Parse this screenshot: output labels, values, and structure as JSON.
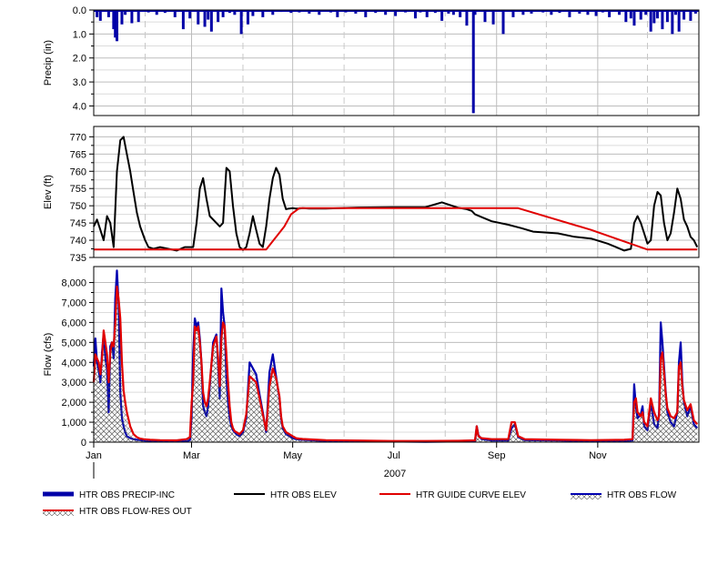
{
  "chart_data": [
    {
      "type": "bar",
      "ylabel": "Precip (in)",
      "ylim": [
        0,
        4.4
      ],
      "y_inverted": true,
      "yticks": [
        "0.0",
        "1.0",
        "2.0",
        "3.0",
        "4.0"
      ],
      "ytick_values": [
        0,
        1,
        2,
        3,
        4
      ],
      "grid": true,
      "series": [
        {
          "name": "HTR OBS PRECIP-INC",
          "color": "#0000a8",
          "x_day": [
            2,
            4,
            9,
            12,
            13,
            14,
            17,
            19,
            23,
            27,
            33,
            38,
            43,
            49,
            54,
            58,
            63,
            67,
            69,
            71,
            75,
            78,
            82,
            85,
            89,
            93,
            96,
            102,
            108,
            113,
            119,
            124,
            130,
            136,
            143,
            147,
            152,
            158,
            164,
            170,
            176,
            182,
            188,
            194,
            197,
            201,
            206,
            210,
            214,
            217,
            221,
            225,
            229,
            230,
            236,
            241,
            247,
            253,
            259,
            264,
            271,
            276,
            281,
            287,
            293,
            298,
            303,
            307,
            311,
            317,
            321,
            324,
            326,
            330,
            333,
            336,
            338,
            340,
            343,
            346,
            349,
            351,
            353,
            356,
            360,
            363
          ],
          "values": [
            0.3,
            0.45,
            0.3,
            0.8,
            1.15,
            1.3,
            0.6,
            0.2,
            0.55,
            0.5,
            0.1,
            0.2,
            0.12,
            0.3,
            0.8,
            0.35,
            0.6,
            0.7,
            0.4,
            0.9,
            0.5,
            0.3,
            0.12,
            0.2,
            1.0,
            0.6,
            0.25,
            0.3,
            0.2,
            0.08,
            0.12,
            0.1,
            0.15,
            0.2,
            0.1,
            0.3,
            0.1,
            0.15,
            0.3,
            0.12,
            0.2,
            0.25,
            0.1,
            0.35,
            0.1,
            0.3,
            0.12,
            0.45,
            0.15,
            0.2,
            0.3,
            0.65,
            4.3,
            0.2,
            0.5,
            0.6,
            1.0,
            0.3,
            0.2,
            0.15,
            0.1,
            0.2,
            0.12,
            0.3,
            0.15,
            0.2,
            0.25,
            0.1,
            0.3,
            0.2,
            0.5,
            0.35,
            0.65,
            0.4,
            0.2,
            0.9,
            0.55,
            0.35,
            0.8,
            0.5,
            1.0,
            0.2,
            0.9,
            0.4,
            0.45,
            0.15
          ]
        }
      ]
    },
    {
      "type": "line",
      "ylabel": "Elev (ft)",
      "ylim": [
        735,
        773
      ],
      "yticks": [
        "735",
        "740",
        "745",
        "750",
        "755",
        "760",
        "765",
        "770"
      ],
      "ytick_values": [
        735,
        740,
        745,
        750,
        755,
        760,
        765,
        770
      ],
      "grid": true,
      "series": [
        {
          "name": "HTR OBS ELEV",
          "color": "#000000",
          "x_day": [
            0,
            2,
            4,
            6,
            8,
            10,
            12,
            14,
            16,
            18,
            20,
            22,
            24,
            26,
            28,
            31,
            33,
            36,
            40,
            45,
            50,
            55,
            60,
            62,
            64,
            66,
            68,
            70,
            72,
            74,
            76,
            78,
            80,
            82,
            84,
            86,
            88,
            90,
            92,
            94,
            96,
            98,
            100,
            102,
            104,
            106,
            108,
            110,
            112,
            114,
            116,
            118,
            120,
            122,
            124,
            126,
            130,
            140,
            160,
            180,
            200,
            210,
            220,
            225,
            228,
            230,
            235,
            240,
            250,
            258,
            265,
            280,
            290,
            300,
            310,
            315,
            320,
            324,
            326,
            328,
            330,
            332,
            334,
            336,
            338,
            340,
            342,
            344,
            346,
            348,
            350,
            352,
            354,
            356,
            358,
            360,
            362,
            364
          ],
          "values": [
            744,
            746,
            743,
            740,
            747,
            745,
            738,
            760,
            769,
            770,
            765,
            760,
            754,
            748,
            744,
            740,
            738,
            737.5,
            738,
            737.5,
            737,
            738,
            738,
            745,
            755,
            758,
            752,
            747,
            746,
            745,
            744,
            745,
            761,
            760,
            750,
            742,
            738,
            737.2,
            738,
            742,
            747,
            743,
            739,
            738,
            744,
            752,
            758,
            761,
            759,
            752,
            749,
            749.2,
            749.3,
            749.2,
            749.2,
            749.3,
            749.2,
            749.2,
            749.5,
            749.6,
            749.6,
            751,
            749.4,
            749,
            748.5,
            747.5,
            746.5,
            745.5,
            744.5,
            743.5,
            742.5,
            742,
            741,
            740.5,
            739,
            738,
            737,
            737.5,
            745,
            747,
            745,
            742,
            739,
            740,
            750,
            754,
            753,
            745,
            740,
            742,
            748,
            755,
            752,
            746,
            744,
            741,
            740,
            738
          ]
        },
        {
          "name": "HTR GUIDE CURVE ELEV",
          "color": "#e00000",
          "x_day": [
            0,
            104,
            115,
            119,
            124,
            130,
            170,
            200,
            230,
            256,
            300,
            334,
            364
          ],
          "values": [
            737.3,
            737.3,
            744,
            747.5,
            749.3,
            749.3,
            749.3,
            749.3,
            749.3,
            749.3,
            743,
            737.3,
            737.3
          ]
        }
      ]
    },
    {
      "type": "line",
      "ylabel": "Flow (cfs)",
      "ylim": [
        0,
        8800
      ],
      "yticks": [
        "0",
        "1,000",
        "2,000",
        "3,000",
        "4,000",
        "5,000",
        "6,000",
        "7,000",
        "8,000"
      ],
      "ytick_values": [
        0,
        1000,
        2000,
        3000,
        4000,
        5000,
        6000,
        7000,
        8000
      ],
      "grid": true,
      "x_axis": {
        "ticks": [
          "Jan",
          "Mar",
          "May",
          "Jul",
          "Sep",
          "Nov"
        ],
        "tick_days": [
          0,
          59,
          120,
          181,
          243,
          304
        ],
        "year_label": "2007",
        "dashed_gridline_days": [
          31,
          90,
          151,
          212,
          273,
          334
        ],
        "solid_gridline_days": [
          59,
          120,
          181,
          243,
          304
        ]
      },
      "series": [
        {
          "name": "HTR OBS FLOW",
          "color": "#0000b0",
          "x_day": [
            0,
            1,
            2,
            3,
            4,
            5,
            6,
            7,
            8,
            9,
            10,
            11,
            12,
            13,
            14,
            15,
            16,
            17,
            18,
            19,
            20,
            22,
            24,
            26,
            28,
            30,
            34,
            40,
            50,
            56,
            58,
            59,
            60,
            61,
            62,
            63,
            64,
            65,
            66,
            67,
            68,
            69,
            70,
            72,
            74,
            75,
            76,
            77,
            78,
            79,
            80,
            81,
            82,
            83,
            84,
            85,
            86,
            88,
            90,
            92,
            94,
            98,
            100,
            102,
            103,
            104,
            106,
            108,
            110,
            112,
            113,
            114,
            116,
            118,
            120,
            121,
            122,
            124,
            126,
            130,
            140,
            160,
            180,
            200,
            220,
            230,
            231,
            232,
            234,
            240,
            250,
            252,
            254,
            256,
            260,
            280,
            300,
            320,
            325,
            326,
            327,
            328,
            330,
            331,
            332,
            334,
            336,
            338,
            340,
            341,
            342,
            343,
            344,
            345,
            346,
            348,
            350,
            352,
            353,
            354,
            355,
            356,
            358,
            360,
            362,
            364
          ],
          "values": [
            3800,
            5200,
            4000,
            3600,
            3000,
            4500,
            5400,
            4200,
            3700,
            1500,
            4800,
            5000,
            4200,
            7200,
            8600,
            7000,
            2500,
            1200,
            800,
            500,
            300,
            200,
            150,
            120,
            100,
            80,
            60,
            50,
            40,
            40,
            100,
            1200,
            4500,
            6200,
            5800,
            6000,
            5200,
            4000,
            1800,
            1500,
            1300,
            1800,
            2800,
            5000,
            5400,
            4000,
            2200,
            7700,
            6500,
            5800,
            3200,
            2000,
            1200,
            800,
            600,
            500,
            400,
            300,
            500,
            1200,
            4000,
            3400,
            2400,
            1500,
            1000,
            500,
            3500,
            4400,
            3300,
            2200,
            1200,
            700,
            400,
            300,
            200,
            180,
            150,
            130,
            120,
            100,
            60,
            40,
            30,
            20,
            30,
            30,
            800,
            350,
            150,
            80,
            80,
            700,
            900,
            250,
            100,
            80,
            50,
            60,
            80,
            2900,
            1800,
            1200,
            1400,
            1800,
            800,
            600,
            2000,
            900,
            700,
            1500,
            6000,
            5000,
            3800,
            2500,
            1500,
            1000,
            800,
            1500,
            4000,
            5000,
            3000,
            2000,
            1300,
            1800,
            900,
            700
          ]
        },
        {
          "name": "HTR OBS FLOW-RES OUT",
          "color": "#e00000",
          "x_day": [
            0,
            1,
            2,
            3,
            4,
            5,
            6,
            7,
            8,
            9,
            10,
            11,
            12,
            13,
            14,
            15,
            16,
            17,
            18,
            19,
            20,
            22,
            24,
            26,
            28,
            30,
            34,
            40,
            50,
            56,
            58,
            59,
            60,
            61,
            62,
            63,
            64,
            65,
            66,
            67,
            68,
            69,
            70,
            72,
            74,
            75,
            76,
            77,
            78,
            79,
            80,
            81,
            82,
            83,
            84,
            85,
            86,
            88,
            90,
            92,
            94,
            98,
            100,
            102,
            103,
            104,
            106,
            108,
            110,
            112,
            113,
            114,
            116,
            118,
            120,
            121,
            122,
            124,
            126,
            130,
            140,
            160,
            180,
            200,
            220,
            230,
            231,
            232,
            234,
            240,
            250,
            252,
            254,
            256,
            260,
            280,
            300,
            320,
            325,
            326,
            327,
            328,
            330,
            331,
            332,
            334,
            336,
            338,
            340,
            341,
            342,
            343,
            344,
            345,
            346,
            348,
            350,
            352,
            353,
            354,
            355,
            356,
            358,
            360,
            362,
            364
          ],
          "values": [
            3000,
            4400,
            4200,
            4000,
            3400,
            4200,
            5600,
            5000,
            4400,
            3000,
            4500,
            5000,
            4800,
            6000,
            7800,
            7200,
            6200,
            4000,
            2600,
            2000,
            1500,
            800,
            400,
            250,
            180,
            150,
            120,
            100,
            90,
            150,
            250,
            1900,
            3000,
            5800,
            5600,
            5800,
            5000,
            4000,
            2500,
            2000,
            1800,
            2200,
            3000,
            4800,
            5300,
            4300,
            2800,
            5200,
            6000,
            5800,
            4400,
            3000,
            1800,
            1000,
            700,
            550,
            500,
            400,
            600,
            1400,
            3300,
            3000,
            2200,
            1400,
            1000,
            600,
            2800,
            3700,
            3200,
            2300,
            1300,
            800,
            500,
            400,
            300,
            250,
            200,
            180,
            160,
            140,
            100,
            80,
            60,
            60,
            70,
            90,
            800,
            300,
            200,
            150,
            150,
            1000,
            1000,
            300,
            150,
            120,
            100,
            120,
            150,
            2000,
            2200,
            1500,
            1300,
            1500,
            1000,
            800,
            2200,
            1500,
            1100,
            1300,
            4200,
            4500,
            3500,
            2400,
            1700,
            1300,
            1200,
            1500,
            3800,
            4000,
            2800,
            2100,
            1600,
            1900,
            1100,
            900
          ]
        }
      ]
    }
  ],
  "legend": [
    {
      "key": "precip",
      "label": "HTR OBS PRECIP-INC",
      "color": "#0000a8",
      "style": "thick-line"
    },
    {
      "key": "elev",
      "label": "HTR OBS ELEV",
      "color": "#000000",
      "style": "line"
    },
    {
      "key": "guide",
      "label": "HTR GUIDE CURVE ELEV",
      "color": "#e00000",
      "style": "line"
    },
    {
      "key": "flow",
      "label": "HTR OBS FLOW",
      "color": "#0000b0",
      "style": "hatched-line"
    },
    {
      "key": "resout",
      "label": "HTR OBS FLOW-RES OUT",
      "color": "#e00000",
      "style": "hatched-line"
    }
  ]
}
